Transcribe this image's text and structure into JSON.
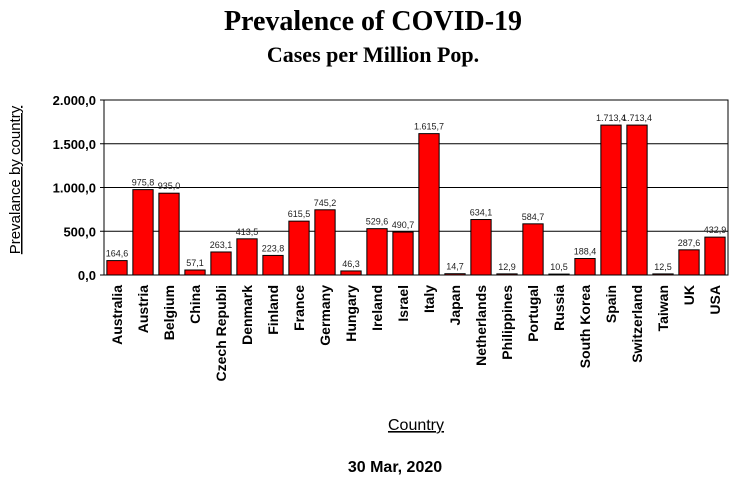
{
  "chart_data": {
    "type": "bar",
    "title": "Prevalence of COVID-19",
    "subtitle": "Cases per Million Pop.",
    "xlabel": "Country",
    "ylabel": "Prevalance by country",
    "footer": "30 Mar, 2020",
    "ylim": [
      0,
      2000
    ],
    "yticks": [
      0,
      500,
      1000,
      1500,
      2000
    ],
    "ytick_labels": [
      "0,0",
      "500,0",
      "1.000,0",
      "1.500,0",
      "2.000,0"
    ],
    "grid": true,
    "bar_color": "#ff0000",
    "categories": [
      "Australia",
      "Austria",
      "Belgium",
      "China",
      "Czech Republi",
      "Denmark",
      "Finland",
      "France",
      "Germany",
      "Hungary",
      "Ireland",
      "Israel",
      "Italy",
      "Japan",
      "Netherlands",
      "Philippines",
      "Portugal",
      "Russia",
      "South Korea",
      "Spain",
      "Switzerland",
      "Taiwan",
      "UK",
      "USA"
    ],
    "values": [
      164.6,
      975.8,
      935.0,
      57.1,
      263.1,
      413.5,
      223.8,
      615.5,
      745.2,
      46.3,
      529.6,
      490.7,
      1615.7,
      14.7,
      634.1,
      12.9,
      584.7,
      10.5,
      188.4,
      1713.4,
      1713.4,
      12.5,
      287.6,
      432.9
    ],
    "value_labels": [
      "164,6",
      "975,8",
      "935,0",
      "57,1",
      "263,1",
      "413,5",
      "223,8",
      "615,5",
      "745,2",
      "46,3",
      "529,6",
      "490,7",
      "1.615,7",
      "14,7",
      "634,1",
      "12,9",
      "584,7",
      "10,5",
      "188,4",
      "1.713,4",
      "1.713,4",
      "12,5",
      "287,6",
      "432,9"
    ]
  }
}
